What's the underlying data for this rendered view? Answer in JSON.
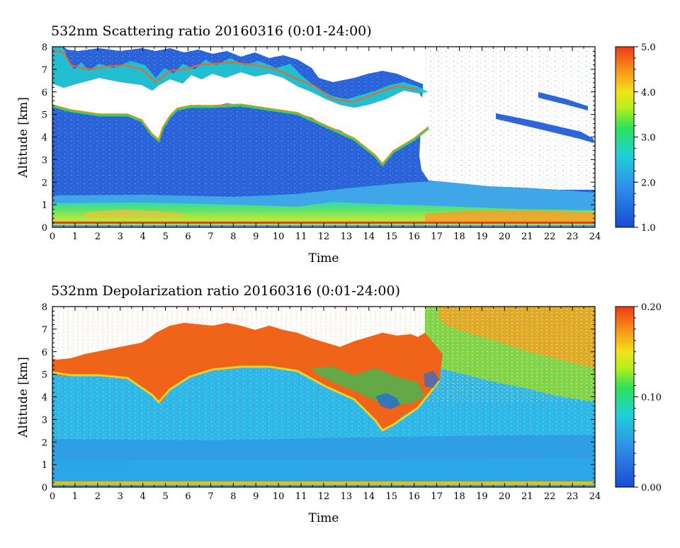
{
  "chart_data": [
    {
      "type": "heatmap",
      "title": "532nm Scattering ratio 20160316 (0:01-24:00)",
      "xlabel": "Time",
      "ylabel": "Altitude [km]",
      "xlim": [
        0,
        24
      ],
      "ylim": [
        0,
        8
      ],
      "x_ticks": [
        "0",
        "1",
        "2",
        "3",
        "4",
        "5",
        "6",
        "7",
        "8",
        "9",
        "10",
        "11",
        "12",
        "13",
        "14",
        "15",
        "16",
        "17",
        "18",
        "19",
        "20",
        "21",
        "22",
        "23",
        "24"
      ],
      "y_ticks": [
        "0",
        "1",
        "2",
        "3",
        "4",
        "5",
        "6",
        "7",
        "8"
      ],
      "colorbar": {
        "range": [
          1.0,
          5.0
        ],
        "ticks": [
          "1.0",
          "2.0",
          "3.0",
          "4.0",
          "5.0"
        ]
      },
      "cloud_base_km": [
        [
          0,
          5.5
        ],
        [
          1,
          5.0
        ],
        [
          2,
          4.9
        ],
        [
          3,
          4.9
        ],
        [
          4,
          4.7
        ],
        [
          4.8,
          3.9
        ],
        [
          5.5,
          4.9
        ],
        [
          6,
          5.5
        ],
        [
          6.5,
          5.6
        ],
        [
          7,
          5.4
        ],
        [
          7.5,
          4.9
        ],
        [
          8,
          4.1
        ],
        [
          8.5,
          4.7
        ],
        [
          9,
          5.2
        ],
        [
          9.5,
          5.3
        ],
        [
          10,
          5.1
        ],
        [
          10.5,
          4.7
        ],
        [
          11,
          4.7
        ],
        [
          11.5,
          4.8
        ],
        [
          12,
          4.9
        ],
        [
          12.5,
          4.5
        ],
        [
          13,
          4.1
        ],
        [
          13.5,
          3.9
        ],
        [
          14,
          3.5
        ],
        [
          14.5,
          2.6
        ],
        [
          15,
          2.9
        ],
        [
          15.5,
          3.2
        ],
        [
          16,
          3.6
        ],
        [
          16.5,
          4.2
        ],
        [
          17,
          5.0
        ]
      ],
      "aerosol_top_km": [
        [
          0,
          1.4
        ],
        [
          4,
          1.45
        ],
        [
          8,
          1.35
        ],
        [
          12,
          1.6
        ],
        [
          14,
          1.9
        ],
        [
          15,
          1.9
        ],
        [
          16,
          2.0
        ],
        [
          17,
          1.9
        ],
        [
          18,
          1.8
        ],
        [
          20,
          1.85
        ],
        [
          22,
          1.75
        ],
        [
          24,
          1.6
        ]
      ]
    },
    {
      "type": "heatmap",
      "title": "532nm Depolarization ratio 20160316 (0:01-24:00)",
      "xlabel": "Time",
      "ylabel": "Altitude [km]",
      "xlim": [
        0,
        24
      ],
      "ylim": [
        0,
        8
      ],
      "x_ticks": [
        "0",
        "1",
        "2",
        "3",
        "4",
        "5",
        "6",
        "7",
        "8",
        "9",
        "10",
        "11",
        "12",
        "13",
        "14",
        "15",
        "16",
        "17",
        "18",
        "19",
        "20",
        "21",
        "22",
        "23",
        "24"
      ],
      "y_ticks": [
        "0",
        "1",
        "2",
        "3",
        "4",
        "5",
        "6",
        "7",
        "8"
      ],
      "colorbar": {
        "range": [
          0.0,
          0.2
        ],
        "ticks": [
          "0.00",
          "0.10",
          "0.20"
        ]
      }
    }
  ]
}
